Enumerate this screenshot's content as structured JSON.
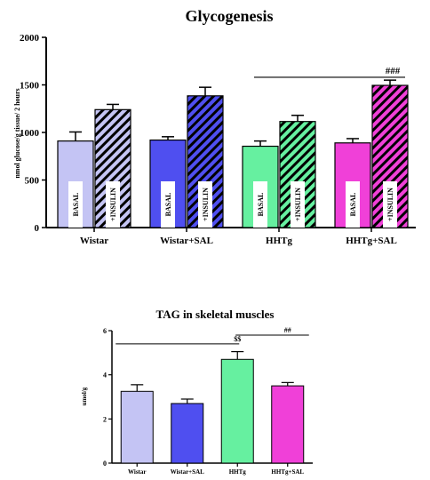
{
  "colors": {
    "wistar": "#c4c4f4",
    "wistar_sal": "#4f4ff0",
    "hhtg": "#66f0a0",
    "hhtg_sal": "#f040d8",
    "axis": "#000000"
  },
  "chart_data": [
    {
      "type": "bar",
      "title": "Glycogenesis",
      "ylabel": "nmol glucose/g tissue/ 2 hours",
      "xlabel": "",
      "ylim": [
        0,
        2000
      ],
      "yticks": [
        0,
        500,
        1000,
        1500,
        2000
      ],
      "grid": false,
      "categories": [
        "Wistar",
        "Wistar+SAL",
        "HHTg",
        "HHTg+SAL"
      ],
      "series": [
        {
          "name": "BASAL",
          "values": [
            910,
            920,
            855,
            890
          ],
          "errors": [
            95,
            35,
            55,
            45
          ]
        },
        {
          "name": "+INSULIN",
          "values": [
            1240,
            1385,
            1115,
            1495
          ],
          "errors": [
            55,
            90,
            65,
            55
          ]
        }
      ],
      "annotations": [
        {
          "text": "###",
          "from_category": "HHTg",
          "to_category": "HHTg+SAL",
          "y": 1580
        }
      ]
    },
    {
      "type": "bar",
      "title": "TAG in skeletal muscles",
      "ylabel": "umol/g",
      "xlabel": "",
      "ylim": [
        0,
        6
      ],
      "yticks": [
        0,
        2,
        4,
        6
      ],
      "grid": false,
      "categories": [
        "Wistar",
        "Wistar+SAL",
        "HHTg",
        "HHTg+SAL"
      ],
      "values": [
        3.25,
        2.7,
        4.7,
        3.5
      ],
      "errors": [
        0.3,
        0.2,
        0.35,
        0.15
      ],
      "annotations": [
        {
          "text": "$$",
          "from_category": "Wistar",
          "to_category": "HHTg",
          "y": 5.4
        },
        {
          "text": "##",
          "from_category": "HHTg",
          "to_category": "HHTg+SAL",
          "y": 5.8
        }
      ]
    }
  ]
}
